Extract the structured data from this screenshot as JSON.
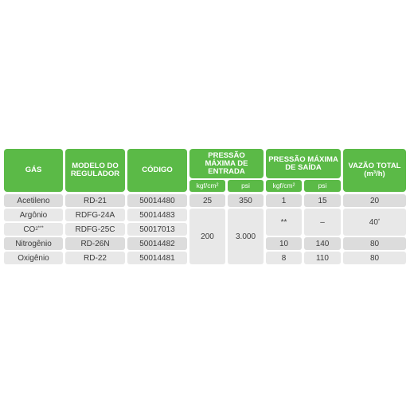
{
  "headers": {
    "gas": "GÁS",
    "modelo": "MODELO DO REGULADOR",
    "codigo": "CÓDIGO",
    "pressao_entrada": "PRESSÃO MÁXIMA DE ENTRADA",
    "pressao_saida": "PRESSÃO MÁXIMA DE SAÍDA",
    "vazao": "VAZÃO TOTAL (m³/h)"
  },
  "subheaders": {
    "entrada_kgf": "kgf/cm²",
    "entrada_psi": "psi",
    "saida_kgf": "kgf/cm²",
    "saida_psi": "psi"
  },
  "rows": [
    {
      "gas": "Acetileno",
      "modelo": "RD-21",
      "codigo": "50014480",
      "entrada_kgf": "25",
      "entrada_psi": "350",
      "saida_kgf": "1",
      "saida_psi": "15",
      "vazao": "20"
    },
    {
      "gas": "Argônio",
      "modelo": "RDFG-24A",
      "codigo": "50014483"
    },
    {
      "gas": "CO",
      "gas_sub": "2",
      "gas_sup": "***",
      "modelo": "RDFG-25C",
      "codigo": "50017013"
    },
    {
      "gas": "Nitrogênio",
      "modelo": "RD-26N",
      "codigo": "50014482",
      "saida_kgf": "10",
      "saida_psi": "140",
      "vazao": "80"
    },
    {
      "gas": "Oxigênio",
      "modelo": "RD-22",
      "codigo": "50014481",
      "saida_kgf": "8",
      "saida_psi": "110",
      "vazao": "80"
    }
  ],
  "merged": {
    "entrada_kgf": "200",
    "entrada_psi": "3.000",
    "saida_kgf_ar_co2": "**",
    "saida_psi_ar_co2": "–",
    "vazao_ar_co2": "40",
    "vazao_ar_co2_mark": "*"
  }
}
